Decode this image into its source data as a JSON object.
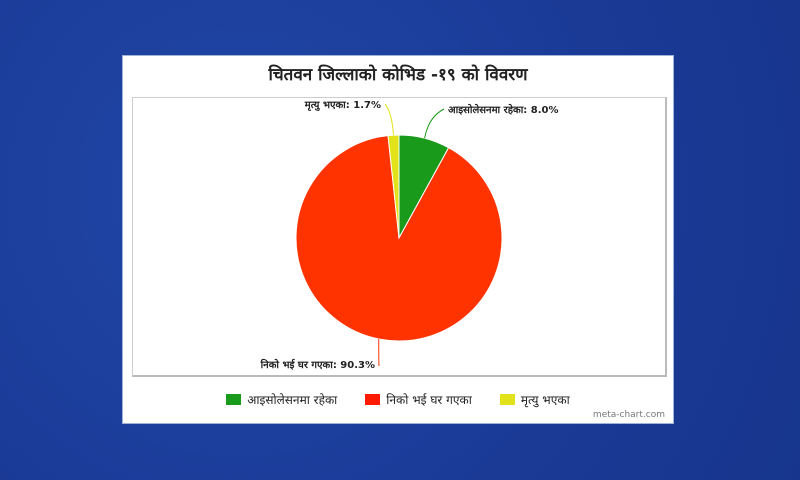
{
  "chart_data": {
    "type": "pie",
    "title": "चितवन जिल्लाको कोभिड -१९ को विवरण",
    "slices": [
      {
        "label": "आइसोलेसनमा रहेका",
        "value": 8.0,
        "data_label": "आइसोलेसनमा रहेका: 8.0%",
        "color": "#1a9a1a"
      },
      {
        "label": "निको भई घर गएका",
        "value": 90.3,
        "data_label": "निको भई घर गएका: 90.3%",
        "color": "#ff3300"
      },
      {
        "label": "मृत्यु भएका",
        "value": 1.7,
        "data_label": "मृत्यु भएका: 1.7%",
        "color": "#e2e21a"
      }
    ],
    "legend_position": "bottom",
    "start_angle": "top, clockwise"
  },
  "credit": "meta-chart.com"
}
